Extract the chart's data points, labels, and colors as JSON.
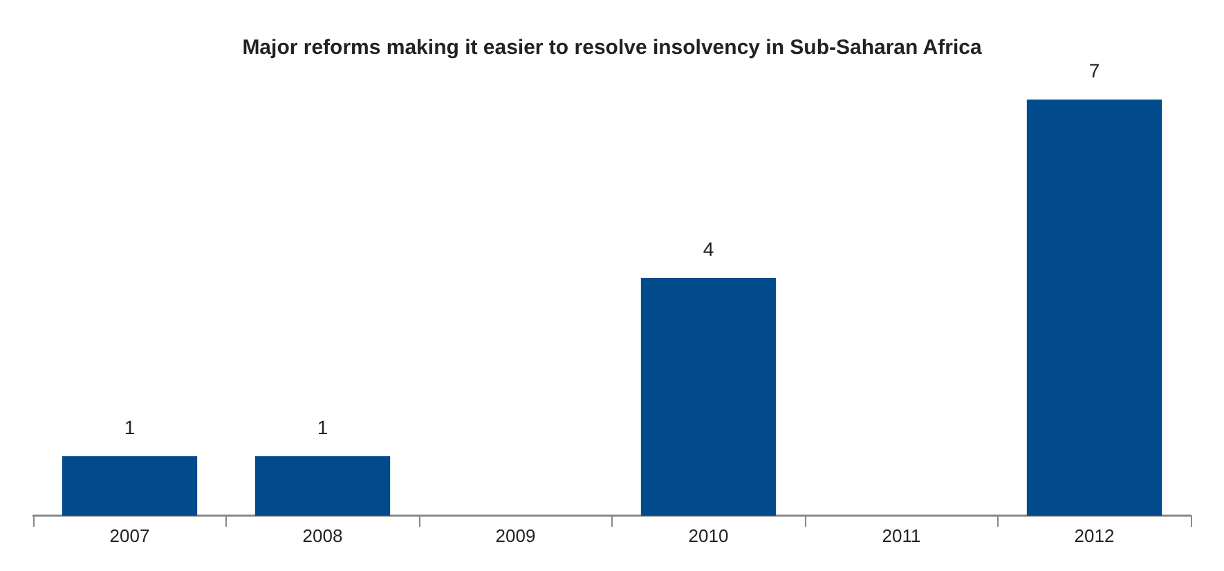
{
  "chart_data": {
    "type": "bar",
    "title": "Major reforms making it easier to resolve insolvency in Sub-Saharan Africa",
    "categories": [
      "2007",
      "2008",
      "2009",
      "2010",
      "2011",
      "2012"
    ],
    "values": [
      1,
      1,
      0,
      4,
      0,
      7
    ],
    "value_labels": [
      "1",
      "1",
      null,
      "4",
      null,
      "7"
    ],
    "color": "#014a8c"
  }
}
